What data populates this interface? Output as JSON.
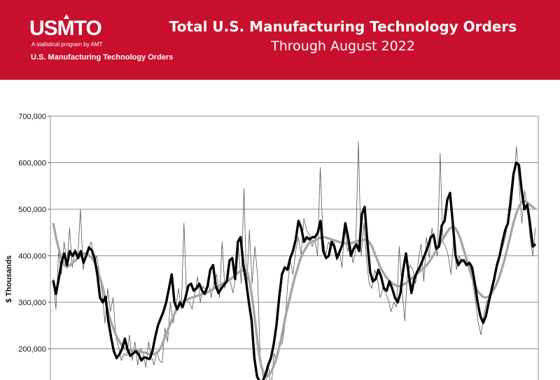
{
  "header": {
    "logo": "USMTO",
    "logo_tagline": "A statistical program by AMT",
    "logo_subtitle": "U.S. Manufacturing Technology Orders",
    "title": "Total U.S. Manufacturing Technology Orders",
    "subtitle": "Through August 2022"
  },
  "colors": {
    "banner": "#c8102e",
    "raw": "#555555",
    "avg3": "#000000",
    "avg12": "#a6a6a6"
  },
  "chart_data": {
    "type": "line",
    "title": "Total U.S. Manufacturing Technology Orders",
    "subtitle": "Through August 2022",
    "ylabel": "$ Thousands",
    "ylim": [
      150000,
      700000
    ],
    "yticks": [
      200000,
      300000,
      400000,
      500000,
      600000,
      700000
    ],
    "ytick_labels": [
      "200,000",
      "300,000",
      "400,000",
      "500,000",
      "600,000",
      "700,000"
    ],
    "grid": true,
    "x_note": "monthly observations, x axis labels not visible",
    "series": [
      {
        "name": "",
        "style": "monthly orders, thin gray line",
        "values": [
          352000,
          285000,
          410000,
          360000,
          430000,
          380000,
          460000,
          375000,
          415000,
          395000,
          500000,
          370000,
          405000,
          418000,
          430000,
          385000,
          400000,
          360000,
          318000,
          255000,
          330000,
          280000,
          310000,
          225000,
          205000,
          175000,
          190000,
          185000,
          230000,
          175000,
          215000,
          165000,
          200000,
          190000,
          160000,
          215000,
          185000,
          165000,
          195000,
          175000,
          170000,
          245000,
          215000,
          300000,
          255000,
          290000,
          330000,
          285000,
          470000,
          305000,
          300000,
          285000,
          320000,
          355000,
          300000,
          335000,
          325000,
          340000,
          310000,
          345000,
          360000,
          310000,
          430000,
          330000,
          360000,
          345000,
          320000,
          355000,
          420000,
          340000,
          545000,
          330000,
          455000,
          340000,
          420000,
          360000,
          175000,
          140000,
          120000,
          165000,
          110000,
          190000,
          175000,
          215000,
          210000,
          250000,
          335000,
          390000,
          360000,
          410000,
          440000,
          400000,
          480000,
          455000,
          445000,
          420000,
          435000,
          400000,
          590000,
          440000,
          400000,
          430000,
          420000,
          435000,
          390000,
          410000,
          375000,
          465000,
          410000,
          430000,
          385000,
          410000,
          645000,
          400000,
          470000,
          390000,
          340000,
          330000,
          370000,
          350000,
          310000,
          330000,
          320000,
          305000,
          280000,
          300000,
          290000,
          420000,
          330000,
          260000,
          360000,
          380000,
          370000,
          340000,
          390000,
          425000,
          345000,
          440000,
          395000,
          460000,
          420000,
          400000,
          620000,
          430000,
          420000,
          400000,
          360000,
          440000,
          370000,
          400000,
          385000,
          390000,
          380000,
          385000,
          340000,
          300000,
          255000,
          230000,
          270000,
          300000,
          310000,
          340000,
          345000,
          380000,
          400000,
          420000,
          440000,
          480000,
          500000,
          560000,
          635000,
          550000,
          470000,
          540000,
          505000,
          440000,
          400000,
          460000
        ]
      },
      {
        "name": "",
        "style": "3-month moving average, thick black line",
        "values": [
          347000,
          318000,
          350000,
          385000,
          405000,
          380000,
          410000,
          400000,
          410000,
          395000,
          410000,
          385000,
          400000,
          418000,
          412000,
          395000,
          360000,
          310000,
          300000,
          312000,
          260000,
          225000,
          195000,
          180000,
          188000,
          200000,
          222000,
          198000,
          185000,
          190000,
          195000,
          188000,
          175000,
          182000,
          180000,
          178000,
          195000,
          225000,
          250000,
          265000,
          280000,
          300000,
          330000,
          360000,
          300000,
          285000,
          300000,
          290000,
          310000,
          335000,
          340000,
          325000,
          330000,
          340000,
          325000,
          318000,
          335000,
          370000,
          380000,
          335000,
          320000,
          330000,
          338000,
          345000,
          390000,
          395000,
          350000,
          430000,
          440000,
          380000,
          345000,
          300000,
          260000,
          180000,
          140000,
          130000,
          130000,
          145000,
          165000,
          180000,
          210000,
          250000,
          310000,
          360000,
          375000,
          370000,
          395000,
          410000,
          435000,
          475000,
          460000,
          430000,
          440000,
          435000,
          440000,
          440000,
          450000,
          475000,
          410000,
          395000,
          400000,
          430000,
          420000,
          395000,
          410000,
          425000,
          470000,
          440000,
          400000,
          415000,
          425000,
          410000,
          490000,
          505000,
          430000,
          365000,
          345000,
          350000,
          370000,
          355000,
          330000,
          325000,
          345000,
          330000,
          310000,
          300000,
          320000,
          370000,
          405000,
          360000,
          320000,
          350000,
          365000,
          375000,
          390000,
          405000,
          420000,
          440000,
          445000,
          415000,
          420000,
          465000,
          475000,
          520000,
          535000,
          470000,
          400000,
          380000,
          390000,
          390000,
          380000,
          385000,
          375000,
          340000,
          300000,
          270000,
          256000,
          270000,
          300000,
          325000,
          350000,
          380000,
          400000,
          430000,
          455000,
          470000,
          520000,
          575000,
          600000,
          595000,
          540000,
          500000,
          510000,
          470000,
          420000,
          425000
        ]
      },
      {
        "name": "",
        "style": "12-month moving average, thick light gray line",
        "values": [
          470000,
          440000,
          415000,
          395000,
          380000,
          375000,
          380000,
          385000,
          390000,
          395000,
          400000,
          405000,
          405000,
          400000,
          395000,
          385000,
          370000,
          350000,
          330000,
          300000,
          275000,
          255000,
          240000,
          225000,
          215000,
          205000,
          200000,
          198000,
          196000,
          195000,
          196000,
          195000,
          193000,
          192000,
          190000,
          188000,
          188000,
          190000,
          195000,
          205000,
          220000,
          235000,
          250000,
          265000,
          278000,
          290000,
          297000,
          302000,
          305000,
          308000,
          310000,
          312000,
          314000,
          316000,
          318000,
          320000,
          323000,
          326000,
          330000,
          333000,
          336000,
          340000,
          343000,
          346000,
          350000,
          355000,
          360000,
          365000,
          368000,
          370000,
          365000,
          340000,
          300000,
          250000,
          200000,
          165000,
          145000,
          140000,
          145000,
          155000,
          170000,
          190000,
          215000,
          245000,
          275000,
          300000,
          325000,
          350000,
          370000,
          390000,
          405000,
          415000,
          425000,
          430000,
          432000,
          435000,
          438000,
          440000,
          440000,
          438000,
          436000,
          434000,
          432000,
          430000,
          428000,
          427000,
          426000,
          427000,
          428000,
          430000,
          432000,
          433000,
          434000,
          435000,
          430000,
          420000,
          405000,
          390000,
          375000,
          365000,
          355000,
          348000,
          342000,
          338000,
          335000,
          335000,
          337000,
          340000,
          345000,
          350000,
          355000,
          360000,
          365000,
          370000,
          375000,
          382000,
          390000,
          400000,
          410000,
          420000,
          430000,
          440000,
          450000,
          458000,
          462000,
          460000,
          450000,
          435000,
          415000,
          395000,
          375000,
          355000,
          340000,
          325000,
          318000,
          312000,
          310000,
          312000,
          318000,
          328000,
          340000,
          355000,
          375000,
          395000,
          420000,
          445000,
          470000,
          490000,
          505000,
          515000,
          518000,
          515000,
          510000,
          505000,
          500000
        ]
      }
    ]
  }
}
